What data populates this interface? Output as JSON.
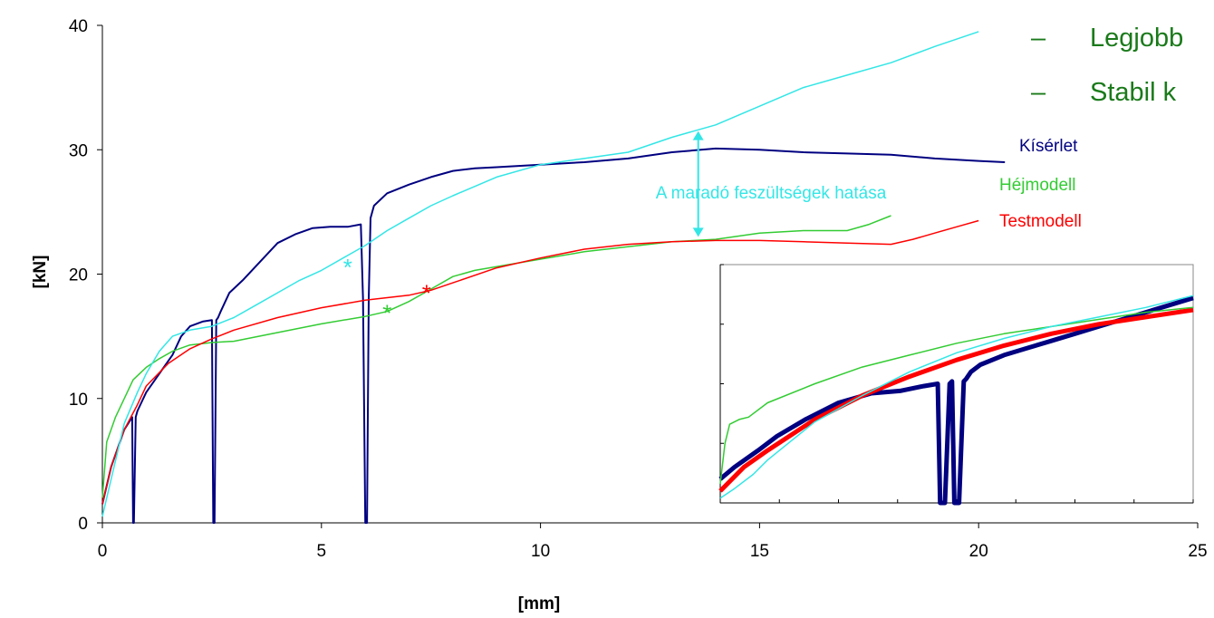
{
  "bullets": [
    {
      "dash": "–",
      "text": "Legjobb"
    },
    {
      "dash": "–",
      "text": "Stabil k"
    }
  ],
  "chart_data": [
    {
      "type": "line",
      "xlabel": "[mm]",
      "ylabel": "[kN]",
      "xlim": [
        0,
        25
      ],
      "ylim": [
        0,
        40
      ],
      "xticks": [
        0,
        5,
        10,
        15,
        20,
        25
      ],
      "yticks": [
        0,
        10,
        20,
        30,
        40
      ],
      "xtick_labels": [
        "0",
        "5",
        "10",
        "15",
        "20",
        "25"
      ],
      "ytick_labels": [
        "0",
        "10",
        "20",
        "30",
        "40"
      ],
      "grid": false,
      "series": [
        {
          "name": "Kísérlet",
          "color": "#000080",
          "stroke_width": 2,
          "x": [
            0.0,
            0.2,
            0.5,
            0.68,
            0.7,
            0.72,
            0.76,
            0.8,
            1.0,
            1.3,
            1.6,
            1.8,
            2.0,
            2.3,
            2.5,
            2.53,
            2.56,
            2.6,
            2.64,
            2.7,
            2.9,
            3.2,
            3.6,
            4.0,
            4.4,
            4.8,
            5.2,
            5.6,
            5.9,
            5.95,
            6.0,
            6.04,
            6.08,
            6.12,
            6.2,
            6.5,
            7.0,
            7.5,
            8.0,
            8.5,
            9.0,
            9.5,
            10.0,
            11.0,
            12.0,
            13.0,
            14.0,
            15.0,
            16.0,
            17.0,
            18.0,
            19.0,
            20.0,
            20.6
          ],
          "y": [
            1.5,
            4.5,
            7.5,
            8.5,
            0,
            0,
            8.5,
            9.0,
            10.5,
            12.0,
            13.5,
            15.0,
            15.8,
            16.2,
            16.3,
            0,
            0,
            16.3,
            16.5,
            17.0,
            18.5,
            19.5,
            21.0,
            22.5,
            23.2,
            23.7,
            23.8,
            23.8,
            24.0,
            18.0,
            0,
            0,
            18.0,
            24.5,
            25.5,
            26.5,
            27.2,
            27.8,
            28.3,
            28.5,
            28.6,
            28.7,
            28.8,
            29.0,
            29.3,
            29.8,
            30.1,
            30.0,
            29.8,
            29.7,
            29.6,
            29.3,
            29.1,
            29.0
          ]
        },
        {
          "name": "Héjmodell",
          "color": "#33cc33",
          "stroke_width": 1.5,
          "x": [
            0.0,
            0.1,
            0.3,
            0.5,
            0.7,
            1.0,
            1.3,
            1.6,
            2.0,
            2.5,
            3.0,
            4.0,
            5.0,
            6.0,
            6.5,
            7.0,
            7.5,
            8.0,
            8.5,
            9.0,
            10.0,
            11.0,
            12.0,
            13.0,
            14.0,
            15.0,
            16.0,
            17.0,
            17.5,
            18.0
          ],
          "y": [
            2.0,
            6.5,
            8.5,
            10.0,
            11.5,
            12.5,
            13.2,
            13.8,
            14.3,
            14.5,
            14.6,
            15.3,
            16.0,
            16.6,
            17.0,
            17.8,
            18.8,
            19.8,
            20.3,
            20.6,
            21.2,
            21.8,
            22.2,
            22.6,
            22.8,
            23.3,
            23.5,
            23.5,
            24.0,
            24.7
          ]
        },
        {
          "name": "Testmodell",
          "color": "#ff0000",
          "stroke_width": 1.5,
          "x": [
            0.0,
            0.2,
            0.5,
            0.8,
            1.0,
            1.5,
            2.0,
            2.5,
            3.0,
            4.0,
            5.0,
            6.0,
            7.0,
            7.5,
            8.0,
            9.0,
            10.0,
            11.0,
            12.0,
            13.0,
            14.0,
            15.0,
            16.0,
            17.0,
            18.0,
            18.5,
            19.0,
            19.5,
            20.0
          ],
          "y": [
            1.5,
            4.5,
            7.5,
            9.5,
            11.0,
            12.8,
            14.0,
            14.8,
            15.5,
            16.5,
            17.3,
            17.9,
            18.3,
            18.7,
            19.3,
            20.5,
            21.3,
            22.0,
            22.4,
            22.6,
            22.7,
            22.7,
            22.6,
            22.5,
            22.4,
            22.8,
            23.3,
            23.8,
            24.3
          ]
        },
        {
          "name": "",
          "color": "#33e6e6",
          "stroke_width": 1.5,
          "x": [
            0.0,
            0.1,
            0.3,
            0.5,
            0.8,
            1.0,
            1.3,
            1.6,
            2.0,
            2.5,
            3.0,
            3.5,
            4.0,
            4.5,
            5.0,
            5.6,
            6.0,
            6.5,
            7.0,
            7.5,
            8.0,
            9.0,
            10.0,
            11.0,
            12.0,
            13.0,
            14.0,
            15.0,
            16.0,
            17.0,
            18.0,
            19.0,
            20.0
          ],
          "y": [
            0.5,
            2.0,
            5.0,
            8.0,
            10.5,
            12.0,
            13.8,
            15.0,
            15.5,
            15.8,
            16.5,
            17.5,
            18.5,
            19.5,
            20.3,
            21.5,
            22.3,
            23.5,
            24.5,
            25.5,
            26.3,
            27.8,
            28.8,
            29.3,
            29.8,
            31.0,
            32.0,
            33.5,
            35.0,
            36.0,
            37.0,
            38.3,
            39.5
          ]
        }
      ],
      "markers": [
        {
          "series": "cyan",
          "x": 5.6,
          "y": 20.7,
          "symbol": "*",
          "color": "#33e6e6"
        },
        {
          "series": "Héjmodell",
          "x": 6.5,
          "y": 17.0,
          "symbol": "*",
          "color": "#33cc33"
        },
        {
          "series": "Testmodell",
          "x": 7.4,
          "y": 18.6,
          "symbol": "*",
          "color": "#ff0000"
        }
      ],
      "series_labels": [
        {
          "text": "Kísérlet",
          "color": "#000080"
        },
        {
          "text": "Héjmodell",
          "color": "#33cc33"
        },
        {
          "text": "Testmodell",
          "color": "#ff0000"
        }
      ],
      "annotation": {
        "text": "A maradó feszültségek hatása",
        "color": "#33e6e6",
        "x": 13.6,
        "y_from": 23.0,
        "y_to": 31.5
      }
    },
    {
      "type": "line",
      "title": "",
      "xlabel": "",
      "ylabel": "",
      "xlim": [
        0,
        10
      ],
      "ylim": [
        0,
        1
      ],
      "grid": false,
      "series": [
        {
          "name": "",
          "color": "#000080",
          "stroke_width": 5,
          "x": [
            0,
            0.3,
            0.8,
            1.2,
            1.8,
            2.5,
            3.2,
            3.8,
            4.3,
            4.6,
            4.65,
            4.75,
            4.85,
            4.9,
            4.95,
            5.05,
            5.15,
            5.2,
            5.3,
            5.5,
            6.0,
            6.5,
            7.0,
            7.5,
            8.0,
            8.5,
            9.0,
            9.5,
            10.0
          ],
          "y": [
            0.1,
            0.15,
            0.22,
            0.28,
            0.35,
            0.42,
            0.46,
            0.47,
            0.49,
            0.5,
            0,
            0,
            0.5,
            0.51,
            0,
            0,
            0.51,
            0.52,
            0.55,
            0.58,
            0.62,
            0.65,
            0.68,
            0.71,
            0.74,
            0.77,
            0.8,
            0.83,
            0.86
          ]
        },
        {
          "name": "",
          "color": "#ff0000",
          "stroke_width": 5,
          "x": [
            0,
            0.5,
            1.0,
            2.0,
            3.0,
            4.0,
            5.0,
            6.0,
            7.0,
            8.0,
            9.0,
            10.0
          ],
          "y": [
            0.05,
            0.15,
            0.22,
            0.35,
            0.45,
            0.53,
            0.6,
            0.66,
            0.71,
            0.75,
            0.78,
            0.81
          ]
        },
        {
          "name": "",
          "color": "#33cc33",
          "stroke_width": 1.5,
          "x": [
            0,
            0.1,
            0.2,
            0.4,
            0.6,
            1.0,
            2.0,
            3.0,
            4.0,
            5.0,
            6.0,
            7.0,
            8.0,
            9.0,
            10.0
          ],
          "y": [
            0.08,
            0.25,
            0.33,
            0.35,
            0.36,
            0.42,
            0.5,
            0.57,
            0.62,
            0.67,
            0.71,
            0.74,
            0.77,
            0.8,
            0.82
          ]
        },
        {
          "name": "",
          "color": "#33e6e6",
          "stroke_width": 1.5,
          "x": [
            0,
            0.3,
            0.7,
            1.0,
            1.5,
            2.0,
            3.0,
            4.0,
            5.0,
            6.0,
            7.0,
            8.0,
            9.0,
            10.0
          ],
          "y": [
            0.02,
            0.06,
            0.12,
            0.18,
            0.26,
            0.34,
            0.45,
            0.55,
            0.63,
            0.69,
            0.74,
            0.78,
            0.82,
            0.87
          ]
        }
      ]
    }
  ]
}
